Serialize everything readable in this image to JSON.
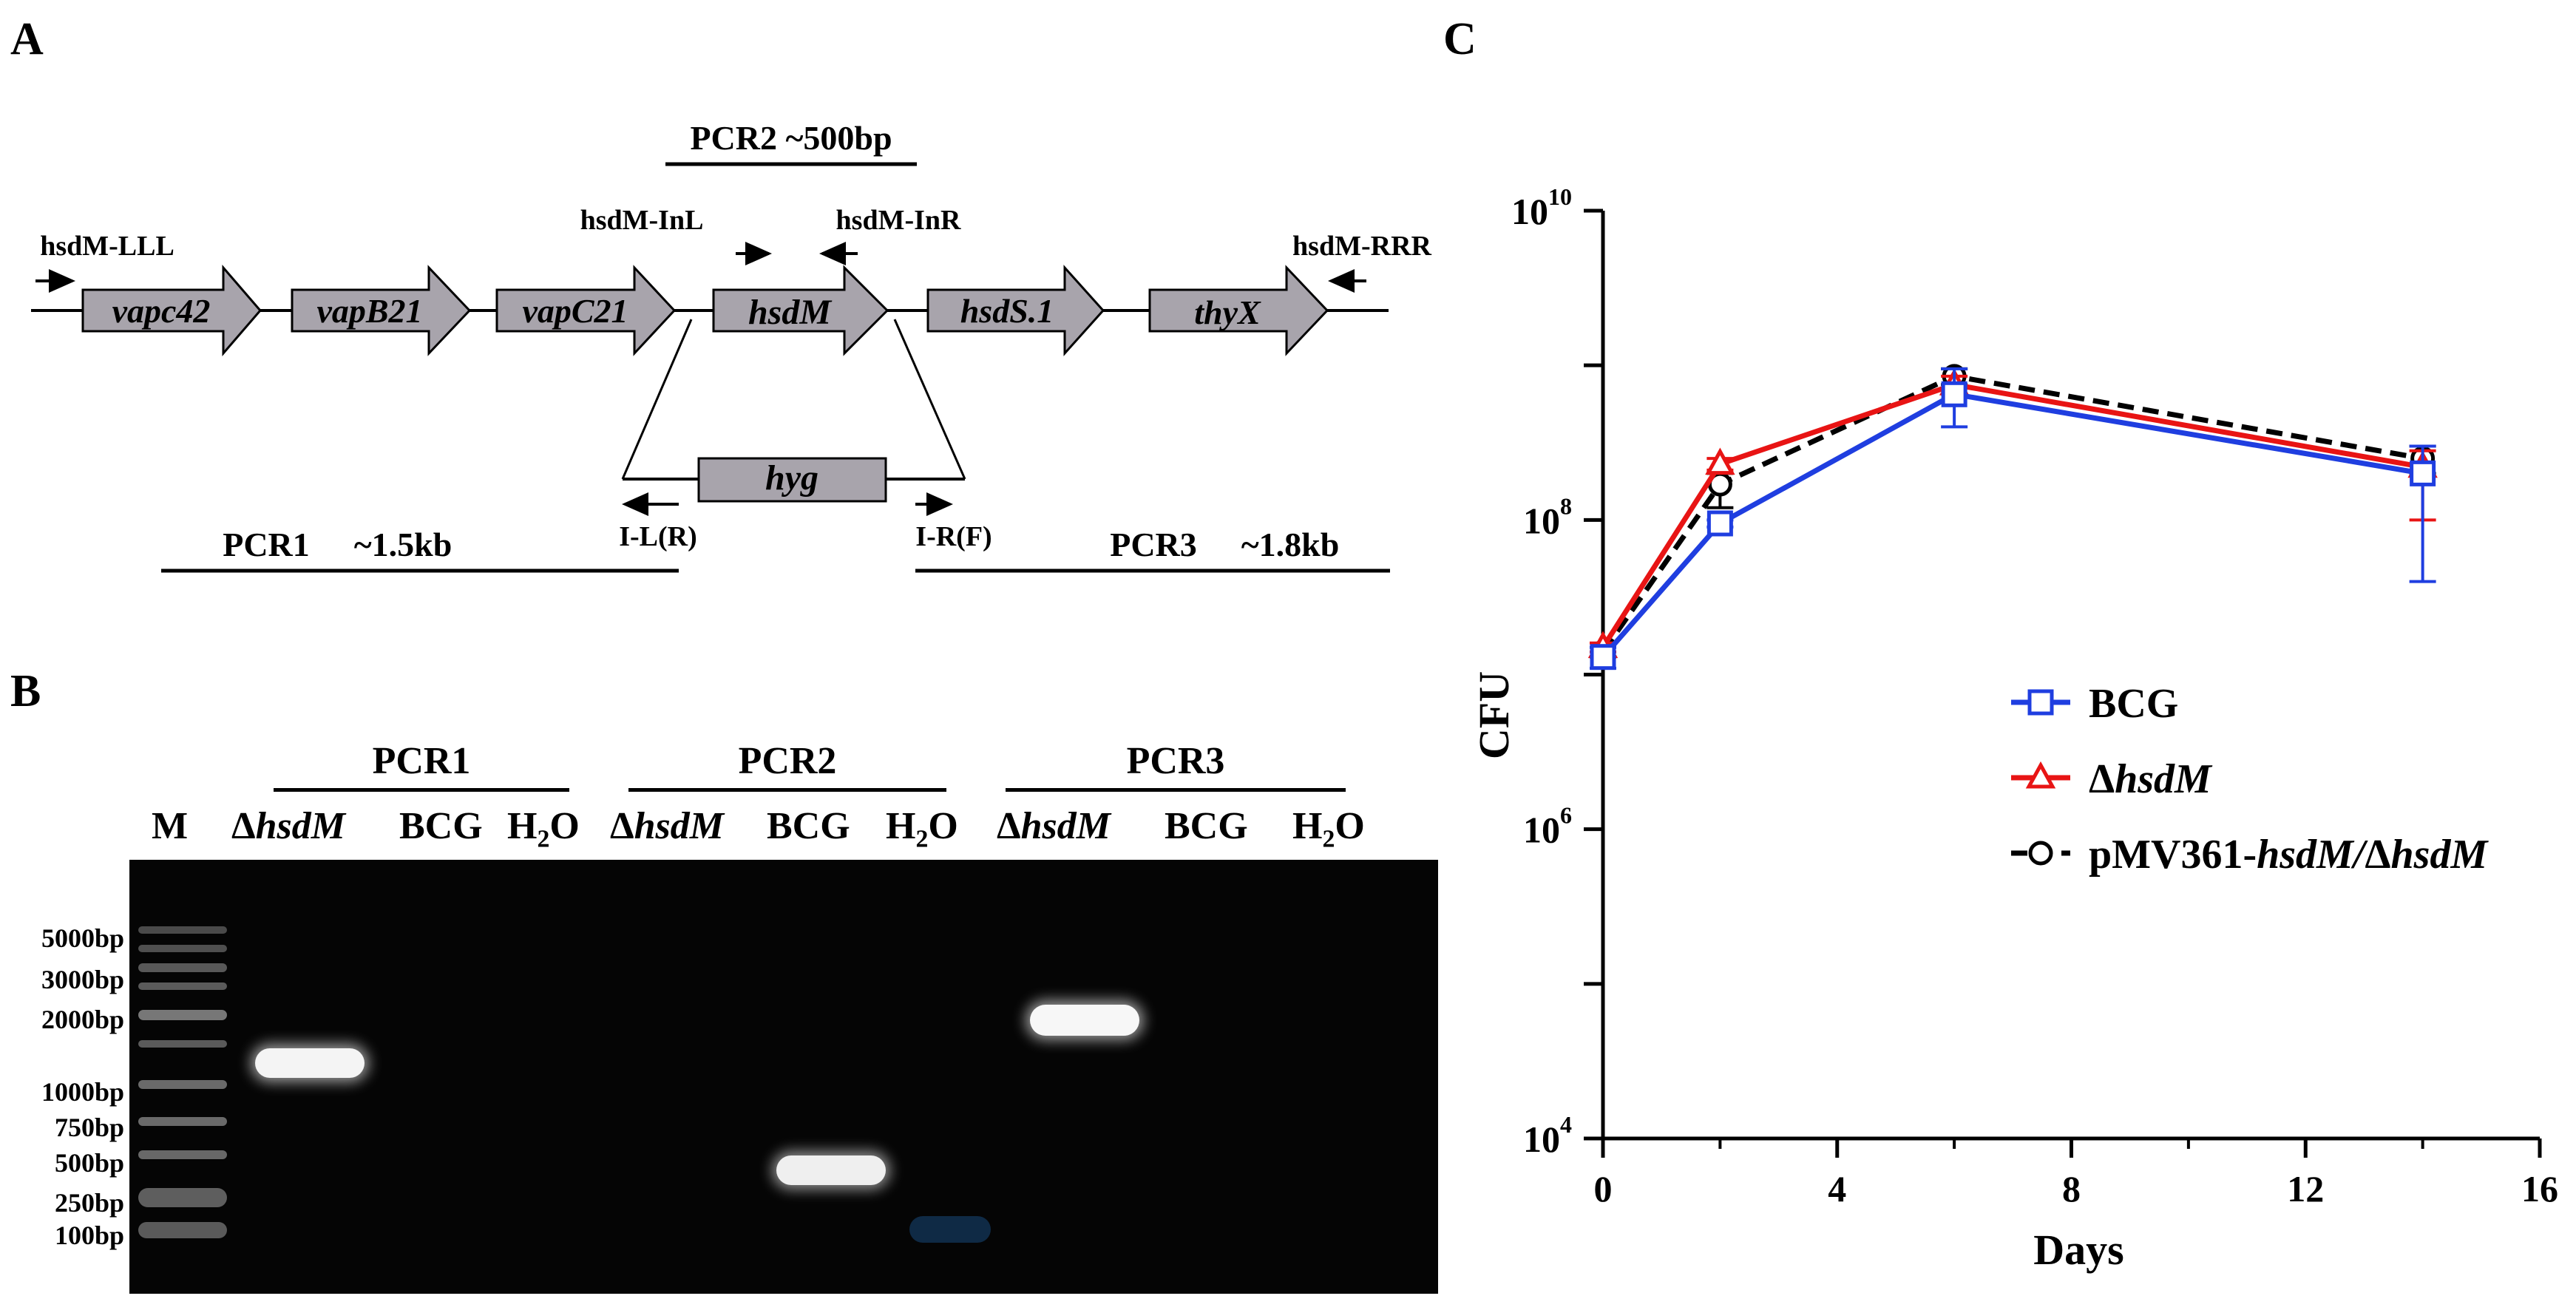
{
  "panels": {
    "a": "A",
    "b": "B",
    "c": "C"
  },
  "panel_a": {
    "pcr2_label": "PCR2 ~500bp",
    "primers": {
      "lll": "hsdM-LLL",
      "inl": "hsdM-InL",
      "inr": "hsdM-InR",
      "rrr": "hsdM-RRR",
      "il": "I-L(R)",
      "ir": "I-R(F)"
    },
    "genes": [
      "vapc42",
      "vapB21",
      "vapC21",
      "hsdM",
      "hsdS.1",
      "thyX"
    ],
    "insert": "hyg",
    "pcr1_label": "PCR1",
    "pcr1_size": "~1.5kb",
    "pcr3_label": "PCR3",
    "pcr3_size": "~1.8kb"
  },
  "panel_b": {
    "groups": [
      "PCR1",
      "PCR2",
      "PCR3"
    ],
    "marker_label": "M",
    "lanes": [
      "ΔhsdM",
      "BCG",
      "H2O",
      "ΔhsdM",
      "BCG",
      "H2O",
      "ΔhsdM",
      "BCG",
      "H2O"
    ],
    "ladder": [
      "5000bp",
      "3000bp",
      "2000bp",
      "1000bp",
      "750bp",
      "500bp",
      "250bp",
      "100bp"
    ]
  },
  "chart_data": {
    "type": "line",
    "title": "",
    "xlabel": "Days",
    "ylabel": "CFU",
    "xlim": [
      0,
      16
    ],
    "xticks": [
      0,
      4,
      8,
      12,
      16
    ],
    "ylim": [
      10000,
      10000000000
    ],
    "yscale": "log",
    "yticks": [
      "10^4",
      "10^6",
      "10^8",
      "10^10"
    ],
    "legend_position": "right",
    "series": [
      {
        "name": "BCG",
        "color": "#1f3ee0",
        "marker": "square",
        "line": "solid",
        "x": [
          0,
          2,
          6,
          14
        ],
        "y": [
          13000000,
          95000000,
          650000000,
          200000000
        ],
        "err_low": [
          11000000,
          90000000,
          400000000,
          40000000
        ],
        "err_high": [
          15000000,
          100000000,
          950000000,
          300000000
        ]
      },
      {
        "name": "ΔhsdM",
        "color": "#e81414",
        "marker": "triangle",
        "line": "solid",
        "x": [
          0,
          2,
          6,
          14
        ],
        "y": [
          15000000,
          230000000,
          750000000,
          220000000
        ],
        "err_low": [
          14000000,
          210000000,
          650000000,
          100000000
        ],
        "err_high": [
          16000000,
          250000000,
          850000000,
          280000000
        ]
      },
      {
        "name": "pMV361-hsdM/ΔhsdM",
        "color": "#000000",
        "marker": "circle",
        "line": "dashed",
        "x": [
          0,
          2,
          6,
          14
        ],
        "y": [
          14000000,
          170000000,
          850000000,
          250000000
        ],
        "err_low": [
          13000000,
          120000000,
          750000000,
          200000000
        ],
        "err_high": [
          15000000,
          200000000,
          950000000,
          300000000
        ]
      }
    ]
  }
}
